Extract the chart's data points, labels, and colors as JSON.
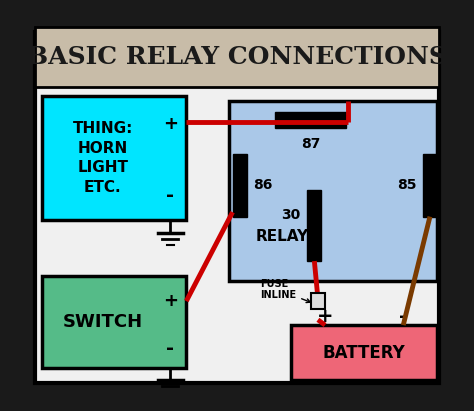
{
  "title": "BASIC RELAY CONNECTIONS",
  "title_fontsize": 18,
  "bg_color": "#1a1a1a",
  "outer_bg": "#f0f0f0",
  "title_box_color": "#c8bca8",
  "thing_box_color": "#00e5ff",
  "switch_box_color": "#55bb88",
  "relay_box_color": "#aac8e8",
  "battery_box_color": "#ee6677",
  "wire_red": "#cc0000",
  "wire_brown": "#7a3a00",
  "ground_color": "#000000",
  "thing_label": "THING:\nHORN\nLIGHT\nETC.",
  "switch_label": "SWITCH",
  "relay_label": "RELAY",
  "battery_label": "BATTERY",
  "fuse_label": "FUSE\nINLINE"
}
